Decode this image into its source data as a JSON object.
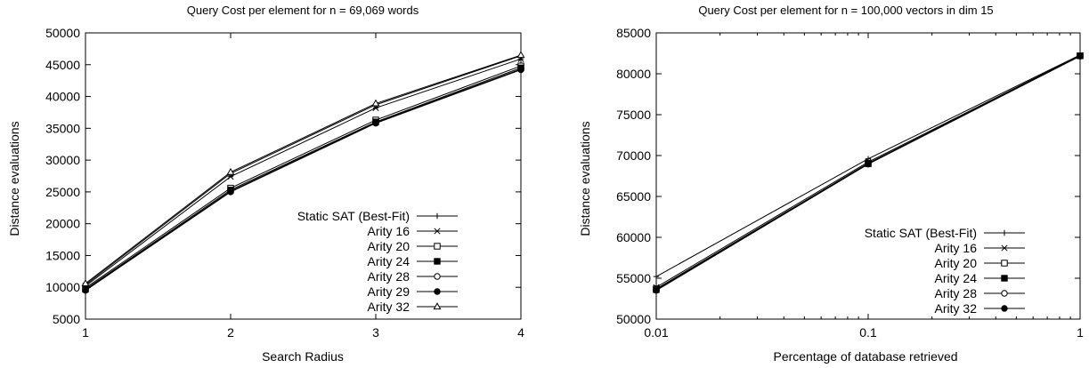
{
  "chart_data": [
    {
      "type": "line",
      "title": "Query Cost per element for n = 69,069 words",
      "xlabel": "Search Radius",
      "ylabel": "Distance evaluations",
      "xscale": "linear",
      "xlim": [
        1,
        4
      ],
      "ylim": [
        5000,
        50000
      ],
      "xticks": [
        1,
        2,
        3,
        4
      ],
      "xtick_labels": [
        "1",
        "2",
        "3",
        "4"
      ],
      "yticks": [
        5000,
        10000,
        15000,
        20000,
        25000,
        30000,
        35000,
        40000,
        45000,
        50000
      ],
      "ytick_labels": [
        "5000",
        "10000",
        "15000",
        "20000",
        "25000",
        "30000",
        "35000",
        "40000",
        "45000",
        "50000"
      ],
      "grid": false,
      "legend_position": "bottom-right",
      "x": [
        1,
        2,
        3,
        4
      ],
      "series": [
        {
          "name": "Static SAT (Best-Fit)",
          "marker": "plus",
          "values": [
            10400,
            27900,
            38700,
            46400
          ]
        },
        {
          "name": "Arity 16",
          "marker": "star",
          "values": [
            10200,
            27400,
            38200,
            45900
          ]
        },
        {
          "name": "Arity 20",
          "marker": "square-open",
          "values": [
            9900,
            25600,
            36300,
            44800
          ]
        },
        {
          "name": "Arity 24",
          "marker": "square-filled",
          "values": [
            9700,
            25300,
            36000,
            44500
          ]
        },
        {
          "name": "Arity 28",
          "marker": "circle-open",
          "values": [
            9600,
            25100,
            35900,
            44300
          ]
        },
        {
          "name": "Arity 29",
          "marker": "circle-filled",
          "values": [
            9500,
            25000,
            35800,
            44200
          ]
        },
        {
          "name": "Arity 32",
          "marker": "triangle-open",
          "values": [
            10600,
            28100,
            38900,
            46500
          ]
        }
      ]
    },
    {
      "type": "line",
      "title": "Query Cost per element for n = 100,000 vectors in dim 15",
      "xlabel": "Percentage of database retrieved",
      "ylabel": "Distance evaluations",
      "xscale": "log",
      "xlim": [
        0.01,
        1
      ],
      "ylim": [
        50000,
        85000
      ],
      "xticks": [
        0.01,
        0.1,
        1
      ],
      "xtick_labels": [
        "0.01",
        "0.1",
        "1"
      ],
      "yticks": [
        50000,
        55000,
        60000,
        65000,
        70000,
        75000,
        80000,
        85000
      ],
      "ytick_labels": [
        "50000",
        "55000",
        "60000",
        "65000",
        "70000",
        "75000",
        "80000",
        "85000"
      ],
      "grid": false,
      "legend_position": "bottom-right",
      "x": [
        0.01,
        0.1,
        1
      ],
      "series": [
        {
          "name": "Static SAT (Best-Fit)",
          "marker": "plus",
          "values": [
            55200,
            69600,
            82300
          ]
        },
        {
          "name": "Arity 16",
          "marker": "star",
          "values": [
            53900,
            69200,
            82250
          ]
        },
        {
          "name": "Arity 20",
          "marker": "square-open",
          "values": [
            53700,
            69050,
            82200
          ]
        },
        {
          "name": "Arity 24",
          "marker": "square-filled",
          "values": [
            53600,
            69000,
            82200
          ]
        },
        {
          "name": "Arity 28",
          "marker": "circle-open",
          "values": [
            53600,
            69000,
            82200
          ]
        },
        {
          "name": "Arity 32",
          "marker": "circle-filled",
          "values": [
            53500,
            68950,
            82150
          ]
        }
      ]
    }
  ]
}
